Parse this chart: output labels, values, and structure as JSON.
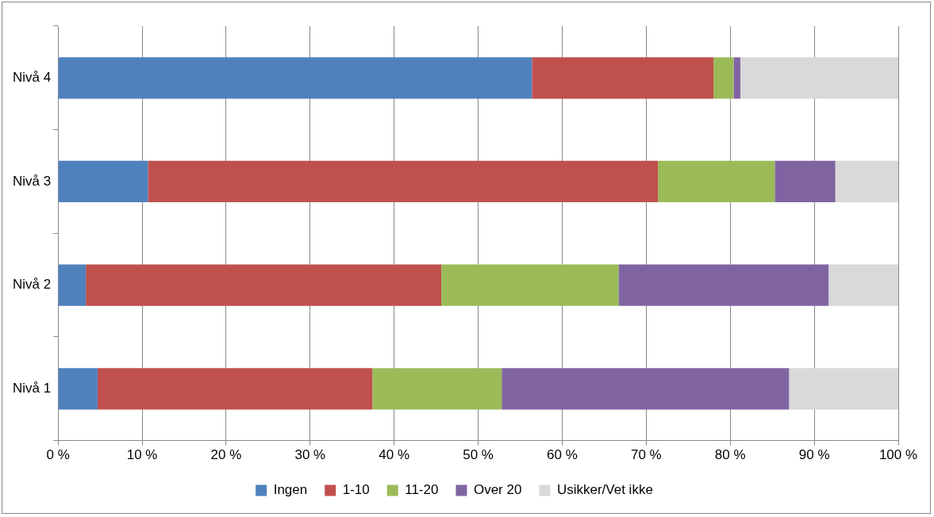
{
  "chart_data": {
    "type": "bar",
    "orientation": "horizontal",
    "stacked": true,
    "categories": [
      "Nivå 4",
      "Nivå 3",
      "Nivå 2",
      "Nivå 1"
    ],
    "series": [
      {
        "name": "Ingen",
        "color": "#4f81bd",
        "values": [
          56.4,
          10.7,
          3.3,
          4.7
        ]
      },
      {
        "name": "1-10",
        "color": "#c0504d",
        "values": [
          21.6,
          60.7,
          42.3,
          32.7
        ]
      },
      {
        "name": "11-20",
        "color": "#9bbb59",
        "values": [
          2.4,
          13.9,
          21.1,
          15.4
        ]
      },
      {
        "name": "Over 20",
        "color": "#8064a2",
        "values": [
          0.8,
          7.2,
          25.0,
          34.2
        ]
      },
      {
        "name": "Usikker/Vet ikke",
        "color": "#d9d9d9",
        "values": [
          18.8,
          7.5,
          8.3,
          13.0
        ]
      }
    ],
    "xlim": [
      0,
      100
    ],
    "xticks": [
      {
        "value": 0,
        "label": "0 %"
      },
      {
        "value": 10,
        "label": "10 %"
      },
      {
        "value": 20,
        "label": "20 %"
      },
      {
        "value": 30,
        "label": "30 %"
      },
      {
        "value": 40,
        "label": "40 %"
      },
      {
        "value": 50,
        "label": "50 %"
      },
      {
        "value": 60,
        "label": "60 %"
      },
      {
        "value": 70,
        "label": "70 %"
      },
      {
        "value": 80,
        "label": "80 %"
      },
      {
        "value": 90,
        "label": "90 %"
      },
      {
        "value": 100,
        "label": "100 %"
      }
    ],
    "grid": "x",
    "legend": "bottom"
  }
}
